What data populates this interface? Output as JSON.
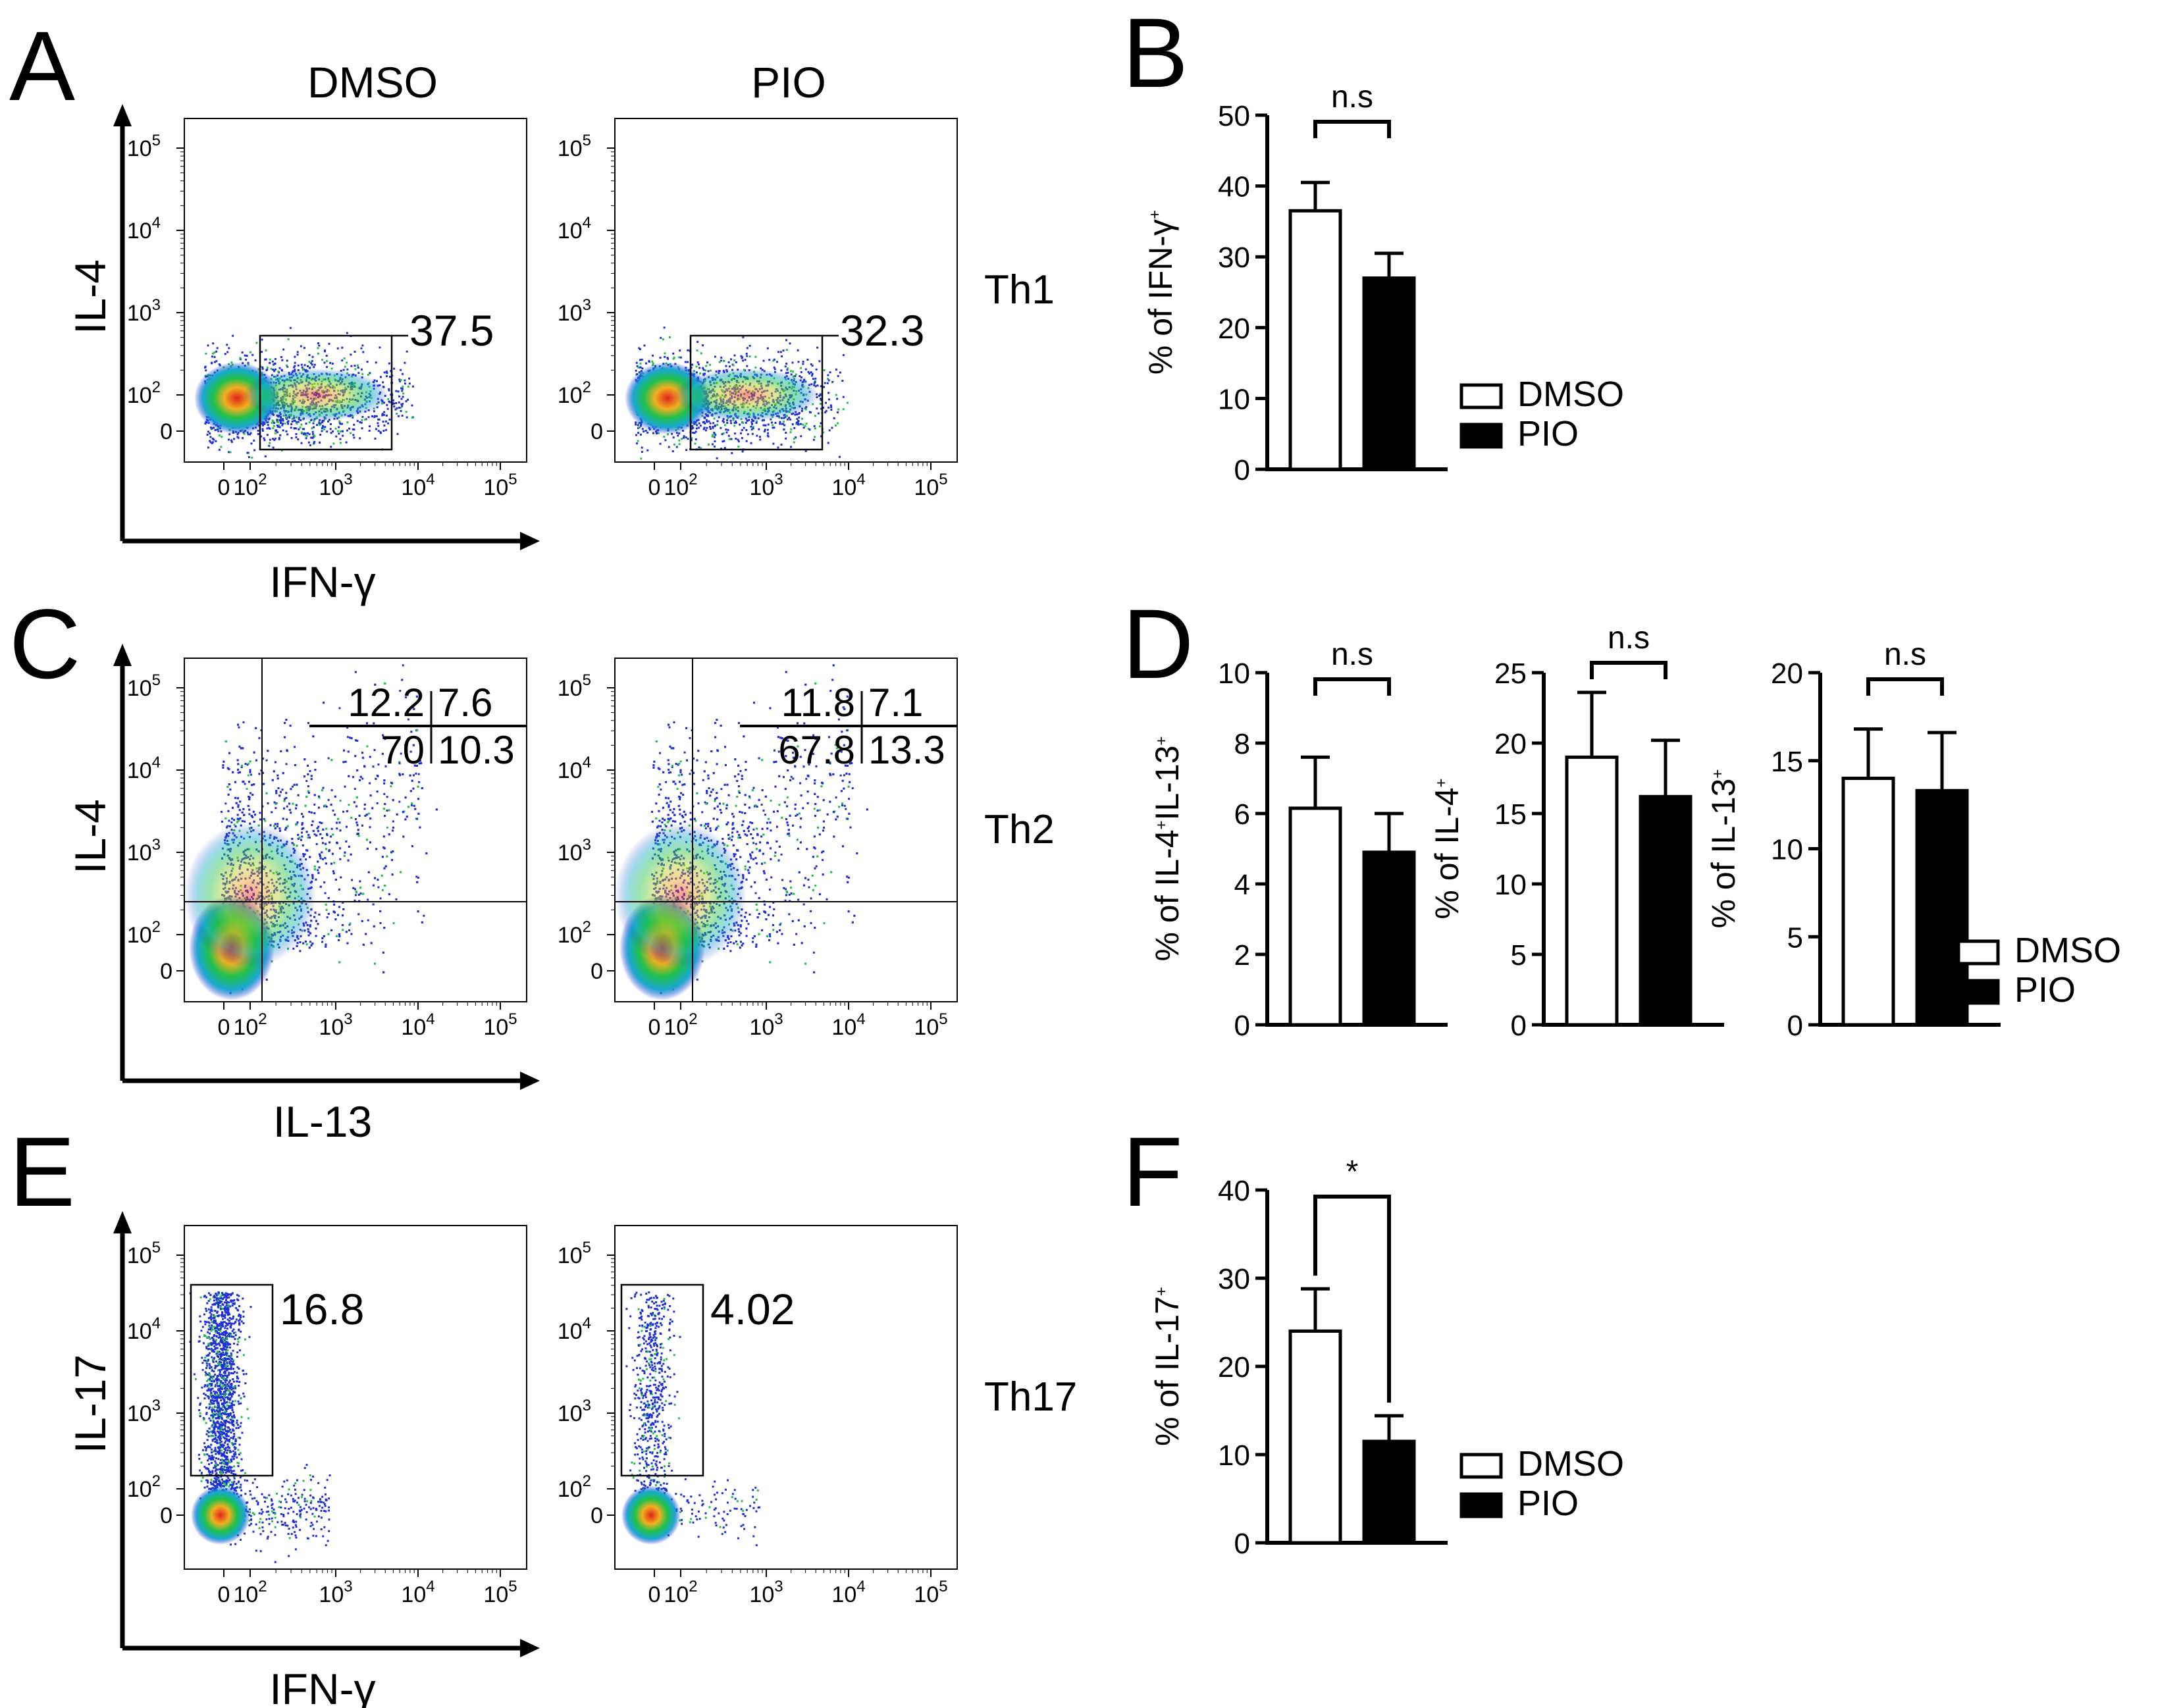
{
  "panels": {
    "A": {
      "letter": "A"
    },
    "B": {
      "letter": "B"
    },
    "C": {
      "letter": "C"
    },
    "D": {
      "letter": "D"
    },
    "E": {
      "letter": "E"
    },
    "F": {
      "letter": "F"
    }
  },
  "conditions": {
    "dmso": "DMSO",
    "pio": "PIO"
  },
  "legend": {
    "dmso": "DMSO",
    "pio": "PIO"
  },
  "colors": {
    "dmso_fill": "#ffffff",
    "pio_fill": "#000000",
    "density_high": "#e0231b",
    "density_mid": "#21c04a",
    "density_low": "#1f2fd6"
  },
  "flow_axes": {
    "tick_labels": [
      "0",
      "10",
      "10",
      "10",
      "10"
    ],
    "tick_exponents": [
      "",
      "2",
      "3",
      "4",
      "5"
    ]
  },
  "flow_rows": [
    {
      "id": "th1",
      "label": "Th1",
      "ylabel": "IL-4",
      "xlabel": "IFN-γ",
      "gate_type": "rect",
      "dmso_value": "37.5",
      "pio_value": "32.3"
    },
    {
      "id": "th2",
      "label": "Th2",
      "ylabel": "IL-4",
      "xlabel": "IL-13",
      "gate_type": "quadrant",
      "dmso_quadrants": {
        "ul": "12.2",
        "ur": "7.6",
        "ll": "70",
        "lr": "10.3"
      },
      "pio_quadrants": {
        "ul": "11.8",
        "ur": "7.1",
        "ll": "67.8",
        "lr": "13.3"
      }
    },
    {
      "id": "th17",
      "label": "Th17",
      "ylabel": "IL-17",
      "xlabel": "IFN-γ",
      "gate_type": "rect",
      "dmso_value": "16.8",
      "pio_value": "4.02"
    }
  ],
  "chart_data": [
    {
      "type": "bar",
      "panel": "B",
      "categories": [
        "DMSO",
        "PIO"
      ],
      "values": [
        36.5,
        27.0
      ],
      "errors": [
        4.0,
        3.5
      ],
      "ylabel_main": "% of IFN-γ",
      "ylabel_sup": "+",
      "ylim": [
        0,
        50
      ],
      "yticks": [
        "0",
        "10",
        "20",
        "30",
        "40",
        "50"
      ],
      "significance": "n.s"
    },
    {
      "type": "bar",
      "panel": "D1",
      "categories": [
        "DMSO",
        "PIO"
      ],
      "values": [
        6.15,
        4.9
      ],
      "errors": [
        1.45,
        1.1
      ],
      "ylabel_parts": [
        "% of IL-4",
        "+",
        "IL-13",
        "+"
      ],
      "ylim": [
        0,
        10
      ],
      "yticks": [
        "0",
        "2",
        "4",
        "6",
        "8",
        "10"
      ],
      "significance": "n.s"
    },
    {
      "type": "bar",
      "panel": "D2",
      "categories": [
        "DMSO",
        "PIO"
      ],
      "values": [
        19.0,
        16.2
      ],
      "errors": [
        4.6,
        4.0
      ],
      "ylabel_main": "% of IL-4",
      "ylabel_sup": "+",
      "ylim": [
        0,
        25
      ],
      "yticks": [
        "0",
        "5",
        "10",
        "15",
        "20",
        "25"
      ],
      "significance": "n.s"
    },
    {
      "type": "bar",
      "panel": "D3",
      "categories": [
        "DMSO",
        "PIO"
      ],
      "values": [
        14.0,
        13.3
      ],
      "errors": [
        2.8,
        3.3
      ],
      "ylabel_main": "% of IL-13",
      "ylabel_sup": "+",
      "ylim": [
        0,
        20
      ],
      "yticks": [
        "0",
        "5",
        "10",
        "15",
        "20"
      ],
      "significance": "n.s"
    },
    {
      "type": "bar",
      "panel": "F",
      "categories": [
        "DMSO",
        "PIO"
      ],
      "values": [
        24.0,
        11.5
      ],
      "errors": [
        4.8,
        2.9
      ],
      "ylabel_main": "% of IL-17",
      "ylabel_sup": "+",
      "ylim": [
        0,
        40
      ],
      "yticks": [
        "0",
        "10",
        "20",
        "30",
        "40"
      ],
      "significance": "*"
    }
  ]
}
